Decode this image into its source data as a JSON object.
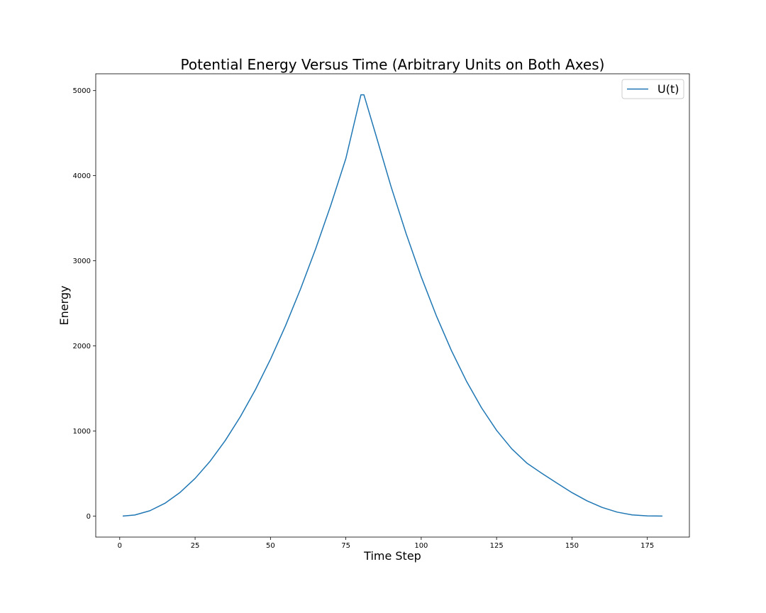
{
  "chart_data": {
    "type": "line",
    "title": "Potential Energy Versus Time (Arbitrary Units on Both Axes)",
    "xlabel": "Time Step",
    "ylabel": "Energy",
    "xlim": [
      -7.95,
      188.95
    ],
    "ylim": [
      -247.5,
      5197.5
    ],
    "xticks": [
      0,
      25,
      50,
      75,
      100,
      125,
      150,
      175
    ],
    "yticks": [
      0,
      1000,
      2000,
      3000,
      4000,
      5000
    ],
    "grid": false,
    "legend": {
      "position": "top-right"
    },
    "series": [
      {
        "name": "U(t)",
        "color": "#1f77b4",
        "x": [
          1,
          5,
          10,
          15,
          20,
          25,
          30,
          35,
          40,
          45,
          50,
          55,
          60,
          65,
          70,
          75,
          80,
          81,
          85,
          90,
          95,
          100,
          105,
          110,
          115,
          120,
          125,
          130,
          135,
          140,
          145,
          150,
          155,
          160,
          165,
          170,
          175,
          180
        ],
        "y": [
          0,
          12,
          62,
          150,
          277,
          442,
          645,
          887,
          1167,
          1485,
          1842,
          2237,
          2671,
          3142,
          3652,
          4201,
          4950,
          4950,
          4473,
          3871,
          3318,
          2812,
          2355,
          1946,
          1585,
          1272,
          1007,
          791,
          623,
          502,
          387,
          275,
          178,
          101,
          46,
          13,
          2,
          0
        ]
      }
    ]
  }
}
